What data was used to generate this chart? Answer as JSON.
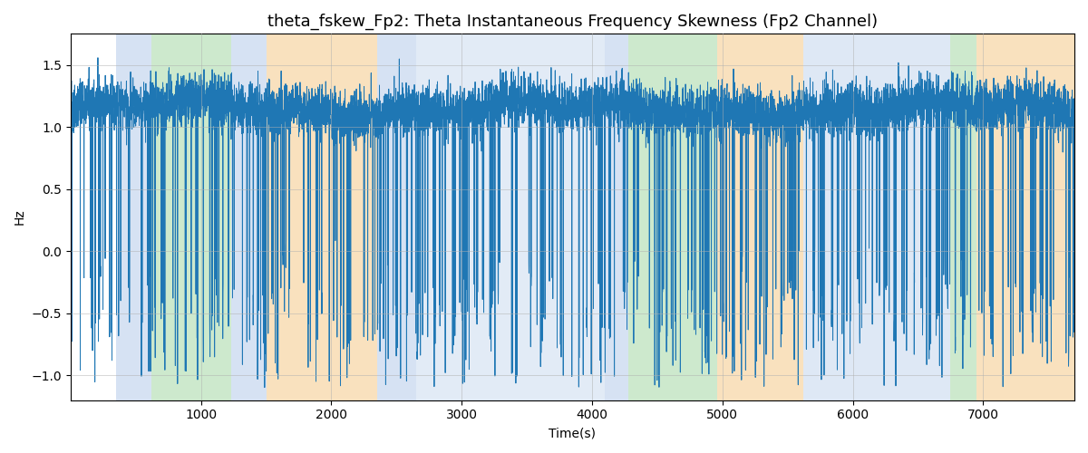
{
  "title": "theta_fskew_Fp2: Theta Instantaneous Frequency Skewness (Fp2 Channel)",
  "xlabel": "Time(s)",
  "ylabel": "Hz",
  "xlim": [
    0,
    7700
  ],
  "ylim": [
    -1.2,
    1.75
  ],
  "line_color": "#1f77b4",
  "line_width": 0.7,
  "background_color": "#ffffff",
  "grid_color": "#b0b0b0",
  "bands": [
    {
      "start": 350,
      "end": 620,
      "color": "#aec6e8",
      "alpha": 0.5
    },
    {
      "start": 620,
      "end": 1230,
      "color": "#90d090",
      "alpha": 0.45
    },
    {
      "start": 1230,
      "end": 1500,
      "color": "#aec6e8",
      "alpha": 0.5
    },
    {
      "start": 1500,
      "end": 2350,
      "color": "#f5c98a",
      "alpha": 0.55
    },
    {
      "start": 2350,
      "end": 2650,
      "color": "#aec6e8",
      "alpha": 0.5
    },
    {
      "start": 2650,
      "end": 4100,
      "color": "#aec6e8",
      "alpha": 0.35
    },
    {
      "start": 4100,
      "end": 4280,
      "color": "#aec6e8",
      "alpha": 0.5
    },
    {
      "start": 4280,
      "end": 4960,
      "color": "#90d090",
      "alpha": 0.45
    },
    {
      "start": 4960,
      "end": 5620,
      "color": "#f5c98a",
      "alpha": 0.55
    },
    {
      "start": 5620,
      "end": 6750,
      "color": "#aec6e8",
      "alpha": 0.4
    },
    {
      "start": 6750,
      "end": 6950,
      "color": "#90d090",
      "alpha": 0.45
    },
    {
      "start": 6950,
      "end": 7700,
      "color": "#f5c98a",
      "alpha": 0.55
    }
  ],
  "seed": 42,
  "n_points": 7700,
  "title_fontsize": 13
}
